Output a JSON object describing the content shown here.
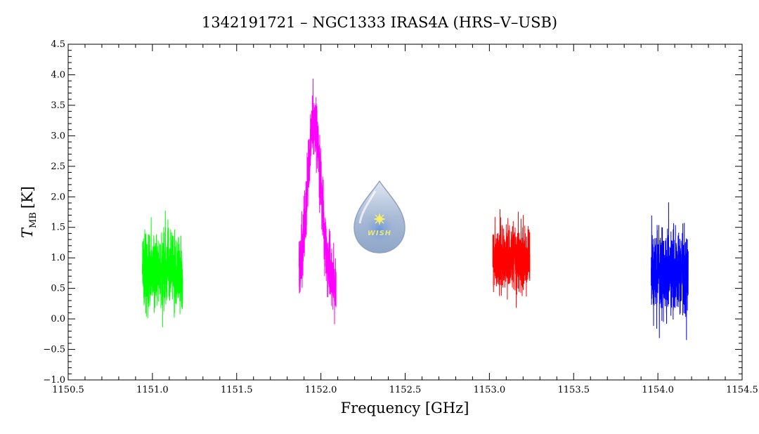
{
  "chart_data": {
    "type": "line",
    "title": "1342191721 – NGC1333 IRAS4A (HRS–V–USB)",
    "xlabel": "Frequency [GHz]",
    "ylabel": {
      "symbol": "T",
      "subscript": "MB",
      "unit": "[K]"
    },
    "xlim": [
      1150.5,
      1154.5
    ],
    "ylim": [
      -1.0,
      4.5
    ],
    "x_ticks": [
      1150.5,
      1151.0,
      1151.5,
      1152.0,
      1152.5,
      1153.0,
      1153.5,
      1154.0,
      1154.5
    ],
    "x_tick_labels": [
      "1150.5",
      "1151.0",
      "1151.5",
      "1152.0",
      "1152.5",
      "1153.0",
      "1153.5",
      "1154.0",
      "1154.5"
    ],
    "y_ticks": [
      -1.0,
      -0.5,
      0.0,
      0.5,
      1.0,
      1.5,
      2.0,
      2.5,
      3.0,
      3.5,
      4.0,
      4.5
    ],
    "y_tick_labels": [
      "−1.0",
      "−0.5",
      "0.0",
      "0.5",
      "1.0",
      "1.5",
      "2.0",
      "2.5",
      "3.0",
      "3.5",
      "4.0",
      "4.5"
    ],
    "x_minor_step": 0.1,
    "y_minor_step": 0.1,
    "grid": false,
    "series": [
      {
        "color": "#00ff00",
        "x_range": [
          1150.94,
          1151.18
        ],
        "baseline": 0.75,
        "noise": 0.55,
        "y_min": -0.4,
        "y_max": 2.0,
        "profile": []
      },
      {
        "color": "#ff00ff",
        "x_range": [
          1151.87,
          1152.09
        ],
        "baseline": 0.6,
        "noise": 0.45,
        "y_min": -0.22,
        "y_max": 3.95,
        "profile": [
          {
            "center": 1151.96,
            "sigma": 0.04,
            "amp": 2.6
          }
        ]
      },
      {
        "color": "#ff0000",
        "x_range": [
          1153.02,
          1153.24
        ],
        "baseline": 1.0,
        "noise": 0.5,
        "y_min": 0.0,
        "y_max": 2.0,
        "profile": []
      },
      {
        "color": "#0000ff",
        "x_range": [
          1153.96,
          1154.18
        ],
        "baseline": 0.75,
        "noise": 0.6,
        "y_min": -0.75,
        "y_max": 2.15,
        "profile": []
      }
    ]
  },
  "logo": {
    "text": "WISH",
    "icon": "wish-drop-logo"
  }
}
